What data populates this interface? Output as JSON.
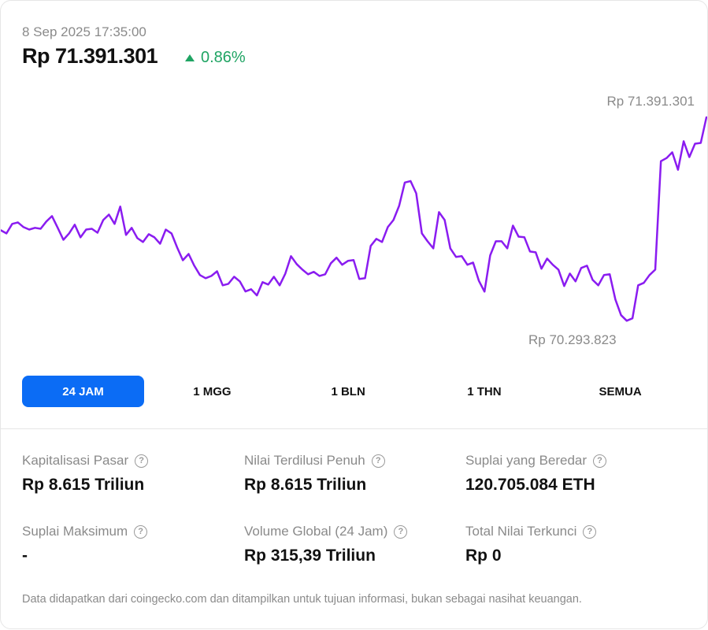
{
  "header": {
    "timestamp": "8 Sep 2025 17:35:00",
    "price": "Rp 71.391.301",
    "change": "0.86%",
    "change_direction": "up",
    "change_color": "#1fa463"
  },
  "chart_data": {
    "type": "line",
    "title": "",
    "xlabel": "",
    "ylabel": "",
    "line_color": "#8a1cf0",
    "high_label": "Rp 71.391.301",
    "low_label": "Rp 70.293.823",
    "ylim": [
      70293823,
      71391301
    ],
    "values": [
      70786000,
      70769000,
      70820000,
      70828000,
      70803000,
      70790000,
      70799000,
      70794000,
      70833000,
      70862000,
      70799000,
      70735000,
      70769000,
      70816000,
      70748000,
      70790000,
      70794000,
      70773000,
      70841000,
      70870000,
      70820000,
      70913000,
      70761000,
      70799000,
      70744000,
      70723000,
      70765000,
      70748000,
      70714000,
      70790000,
      70769000,
      70693000,
      70625000,
      70659000,
      70596000,
      70546000,
      70529000,
      70541000,
      70566000,
      70491000,
      70499000,
      70537000,
      70512000,
      70458000,
      70470000,
      70437000,
      70508000,
      70495000,
      70537000,
      70491000,
      70554000,
      70647000,
      70605000,
      70575000,
      70550000,
      70563000,
      70541000,
      70550000,
      70609000,
      70639000,
      70601000,
      70622000,
      70626000,
      70525000,
      70529000,
      70702000,
      70740000,
      70723000,
      70803000,
      70841000,
      70917000,
      71042000,
      71050000,
      70984000,
      70769000,
      70727000,
      70689000,
      70883000,
      70841000,
      70689000,
      70643000,
      70647000,
      70601000,
      70613000,
      70516000,
      70457000,
      70651000,
      70727000,
      70727000,
      70689000,
      70811000,
      70752000,
      70749000,
      70672000,
      70668000,
      70580000,
      70634000,
      70601000,
      70575000,
      70487000,
      70554000,
      70512000,
      70584000,
      70596000,
      70520000,
      70491000,
      70546000,
      70550000,
      70415000,
      70331000,
      70301000,
      70314000,
      70491000,
      70504000,
      70546000,
      70575000,
      71156000,
      71173000,
      71204000,
      71110000,
      71263000,
      71178000,
      71250000,
      71254000,
      71391301
    ]
  },
  "ranges": [
    {
      "label": "24 JAM",
      "active": true
    },
    {
      "label": "1 MGG",
      "active": false
    },
    {
      "label": "1 BLN",
      "active": false
    },
    {
      "label": "1 THN",
      "active": false
    },
    {
      "label": "SEMUA",
      "active": false
    }
  ],
  "active_color": "#0b6cf5",
  "stats": [
    {
      "label": "Kapitalisasi Pasar",
      "value": "Rp 8.615 Triliun"
    },
    {
      "label": "Nilai Terdilusi Penuh",
      "value": "Rp 8.615 Triliun"
    },
    {
      "label": "Suplai yang Beredar",
      "value": "120.705.084 ETH"
    },
    {
      "label": "Suplai Maksimum",
      "value": "-"
    },
    {
      "label": "Volume Global (24 Jam)",
      "value": "Rp 315,39 Triliun"
    },
    {
      "label": "Total Nilai Terkunci",
      "value": "Rp 0"
    }
  ],
  "help_icon_glyph": "?",
  "footer": "Data didapatkan dari coingecko.com dan ditampilkan untuk tujuan informasi, bukan sebagai nasihat keuangan."
}
